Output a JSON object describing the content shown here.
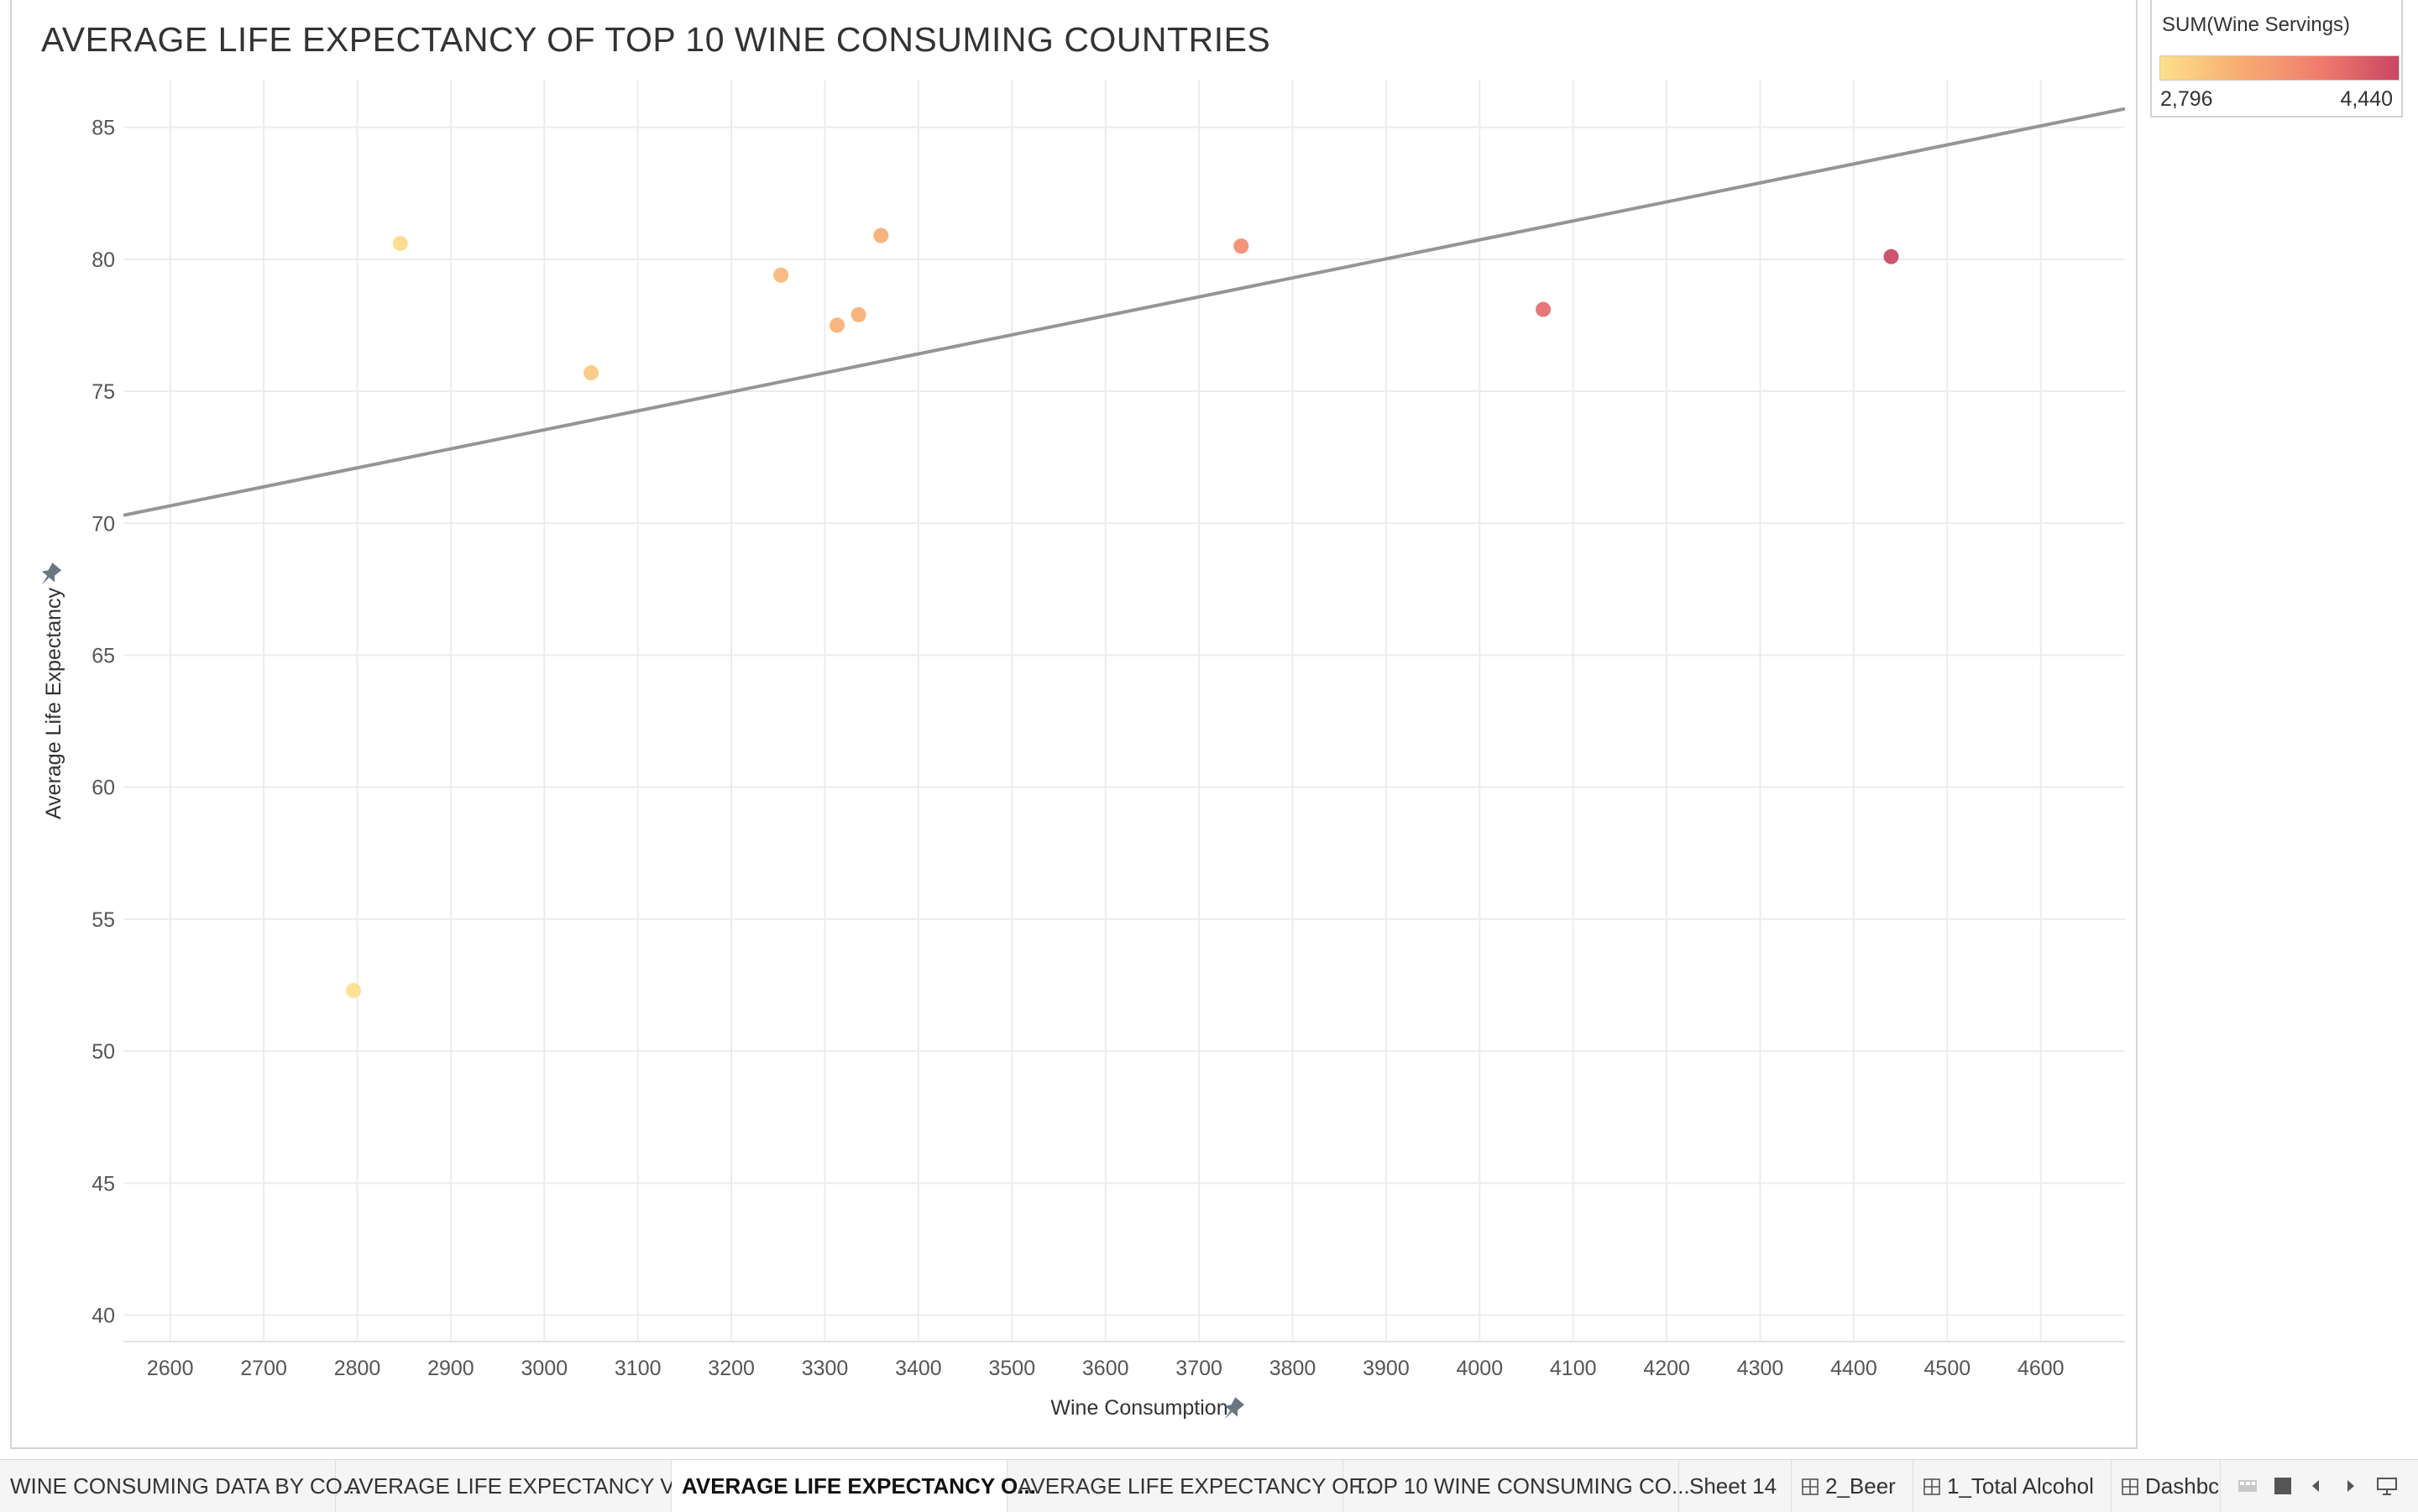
{
  "chart_data": {
    "type": "scatter",
    "title": "AVERAGE LIFE EXPECTANCY OF TOP 10 WINE CONSUMING COUNTRIES",
    "xlabel": "Wine Consumption",
    "ylabel": "Average Life Expectancy",
    "xlim": [
      2550,
      4690
    ],
    "ylim": [
      39,
      86.8
    ],
    "x_ticks": [
      2600,
      2700,
      2800,
      2900,
      3000,
      3100,
      3200,
      3300,
      3400,
      3500,
      3600,
      3700,
      3800,
      3900,
      4000,
      4100,
      4200,
      4300,
      4400,
      4500,
      4600
    ],
    "y_ticks": [
      40,
      45,
      50,
      55,
      60,
      65,
      70,
      75,
      80,
      85
    ],
    "grid": true,
    "points": [
      {
        "x": 2796,
        "y": 52.3,
        "color_value": 2796
      },
      {
        "x": 2846,
        "y": 80.6,
        "color_value": 2846
      },
      {
        "x": 3050,
        "y": 75.7,
        "color_value": 3050
      },
      {
        "x": 3253,
        "y": 79.4,
        "color_value": 3253
      },
      {
        "x": 3313,
        "y": 77.5,
        "color_value": 3313
      },
      {
        "x": 3336,
        "y": 77.9,
        "color_value": 3336
      },
      {
        "x": 3360,
        "y": 80.9,
        "color_value": 3360
      },
      {
        "x": 3745,
        "y": 80.5,
        "color_value": 3745
      },
      {
        "x": 4068,
        "y": 78.1,
        "color_value": 4068
      },
      {
        "x": 4440,
        "y": 80.1,
        "color_value": 4440
      }
    ],
    "trend_line": {
      "x": [
        2550,
        4690
      ],
      "y": [
        70.3,
        85.7
      ]
    },
    "legend": {
      "title": "SUM(Wine Servings)",
      "min_label": "2,796",
      "max_label": "4,440",
      "min": 2796,
      "max": 4440,
      "colors": [
        "#fde08a",
        "#f8ad72",
        "#f07d6e",
        "#ca4562"
      ],
      "placement": "top-right"
    }
  },
  "colors": {
    "grid": "#ececec",
    "trend": "#959595",
    "axis_text": "#555555",
    "pin": "#6b7683"
  },
  "tabs": [
    {
      "label": "WINE CONSUMING DATA BY CO...",
      "icon": "none",
      "active": false
    },
    {
      "label": "AVERAGE LIFE EXPECTANCY VS...",
      "icon": "none",
      "active": false
    },
    {
      "label": "AVERAGE LIFE EXPECTANCY O...",
      "icon": "none",
      "active": true
    },
    {
      "label": "AVERAGE LIFE EXPECTANCY OF...",
      "icon": "none",
      "active": false
    },
    {
      "label": "TOP 10 WINE CONSUMING CO...",
      "icon": "none",
      "active": false
    },
    {
      "label": "Sheet 14",
      "icon": "none",
      "active": false
    },
    {
      "label": "2_Beer",
      "icon": "dashboard-grid-icon",
      "active": false
    },
    {
      "label": "1_Total Alcohol",
      "icon": "dashboard-grid-icon",
      "active": false
    },
    {
      "label": "Dashbc",
      "icon": "dashboard-grid-icon",
      "active": false
    }
  ],
  "tab_nav": [
    "show-filmstrip-icon",
    "show-tabs-icon",
    "scroll-left-icon",
    "scroll-right-icon",
    "present-mode-icon"
  ]
}
